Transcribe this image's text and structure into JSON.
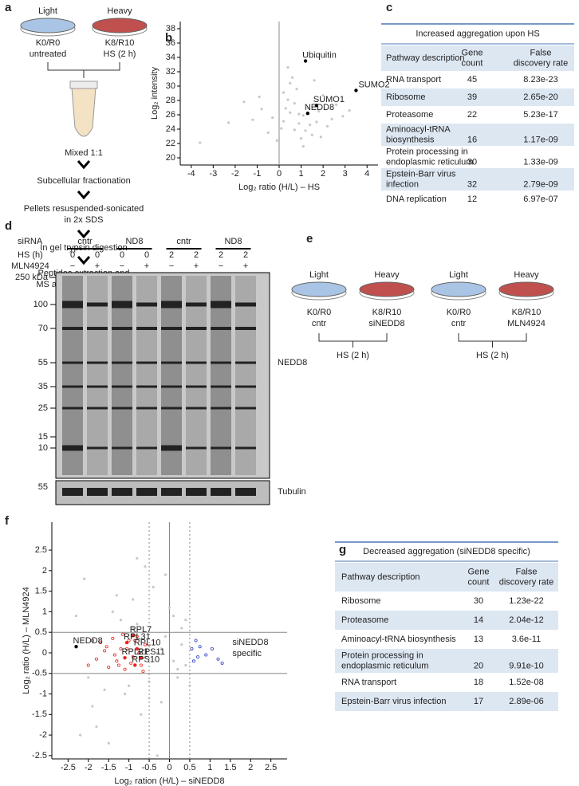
{
  "panel_labels": [
    "a",
    "b",
    "c",
    "d",
    "e",
    "f",
    "g"
  ],
  "panel_a": {
    "light": "Light",
    "heavy": "Heavy",
    "light_label": [
      "K0/R0",
      "untreated"
    ],
    "heavy_label": [
      "K8/R10",
      "HS (2 h)"
    ],
    "mix": "Mixed 1:1",
    "steps": [
      [
        "Subcellular fractionation"
      ],
      [
        "Pellets resuspended-sonicated",
        "in 2x SDS"
      ],
      [
        "In gel trypsin digestion"
      ],
      [
        "Peptides extraction and",
        "MS analysis/quantitation"
      ]
    ]
  },
  "chart_data": [
    {
      "type": "scatter",
      "xlabel": "Log₂ ratio (H/L) – HS",
      "ylabel": "Log₂ intensity",
      "xlim": [
        -4.5,
        4.5
      ],
      "ylim": [
        19,
        39
      ],
      "xticks": [
        -4,
        -3,
        -2,
        -1,
        0,
        1,
        2,
        3,
        4
      ],
      "yticks": [
        20,
        22,
        24,
        26,
        28,
        30,
        32,
        34,
        36,
        38
      ],
      "vlines": [
        0
      ],
      "series": [
        {
          "color": "#c8c8c8",
          "x": [
            0.2,
            0.5,
            0.9,
            1.3,
            -0.3,
            0.7,
            1.1,
            1.8,
            2.2,
            -0.8,
            0.4,
            1.5,
            0.1,
            -1.2,
            2.6,
            0.8,
            1.0,
            0.3,
            -0.5,
            1.7,
            2.0,
            0.6,
            -1.6,
            1.4,
            0.9,
            -0.1,
            2.9,
            0.5,
            1.2,
            -2.3,
            0.7,
            1.9,
            0.2,
            -0.9,
            3.2,
            1.1,
            -3.6,
            0.4,
            2.4,
            1.6
          ],
          "values": [
            25.1,
            26.3,
            24.8,
            27.0,
            25.6,
            23.9,
            25.9,
            26.5,
            24.4,
            26.8,
            28.1,
            23.2,
            24.1,
            25.3,
            27.4,
            29.6,
            22.7,
            26.9,
            23.5,
            25.0,
            28.7,
            31.2,
            27.8,
            24.6,
            26.1,
            22.4,
            25.8,
            30.4,
            23.8,
            24.9,
            27.6,
            22.9,
            29.1,
            28.5,
            26.6,
            21.6,
            22.1,
            32.6,
            25.4,
            30.8
          ]
        },
        {
          "color": "#000000",
          "x": [
            1.2,
            3.5,
            1.7,
            1.3
          ],
          "values": [
            33.5,
            29.4,
            27.3,
            26.2
          ],
          "labels": [
            "Ubiquitin",
            "SUMO2",
            "SUMO1",
            "NEDD8"
          ]
        }
      ]
    },
    {
      "type": "scatter",
      "xlabel": "Log₂ ration (H/L) – siNEDD8",
      "ylabel": "Log₂ ratio (H/L) – MLN4924",
      "xlim": [
        -2.9,
        2.9
      ],
      "ylim": [
        -2.58,
        3.18
      ],
      "xticks": [
        -2.5,
        -2,
        -1.5,
        -1,
        -0.5,
        0,
        0.5,
        1,
        1.5,
        2,
        2.5
      ],
      "yticks": [
        -2.5,
        -2,
        -1.5,
        -1,
        -0.5,
        0,
        0.5,
        1,
        1.5,
        2,
        2.5
      ],
      "vlines": [
        0
      ],
      "dotted_vlines": [
        -0.5,
        0.5
      ],
      "hlines": [
        -0.5,
        0.5
      ],
      "annotation": [
        "siNEDD8",
        "specific"
      ],
      "series": [
        {
          "color": "#c8c8c8",
          "x": [
            -0.2,
            0.1,
            -0.4,
            0.3,
            -0.6,
            -0.1,
            0.4,
            -0.3,
            0.2,
            -0.8,
            -1.2,
            -0.5,
            0.0,
            -1.6,
            -2.0,
            -0.9,
            0.3,
            -0.2,
            -1.4,
            -0.7,
            -2.3,
            -1.8,
            0.5,
            -0.4,
            -1.1,
            -0.6,
            0.2,
            -2.1,
            -1.5,
            -0.3,
            -0.9,
            0.1,
            -1.3,
            -0.5,
            -1.9,
            -0.8,
            0.4,
            -2.2,
            -1.0,
            -0.1
          ],
          "values": [
            0.1,
            -0.2,
            0.3,
            0.2,
            -0.1,
            0.4,
            -0.3,
            0.0,
            -0.4,
            0.7,
            0.8,
            -0.7,
            1.1,
            -0.9,
            -0.6,
            1.3,
            0.6,
            -1.2,
            1.0,
            -1.5,
            0.9,
            -1.8,
            -0.8,
            1.6,
            -1.0,
            2.1,
            -0.6,
            1.8,
            -2.2,
            -2.5,
            0.6,
            0.9,
            1.4,
            -1.1,
            -1.3,
            2.3,
            0.8,
            -2.0,
            -0.8,
            1.9
          ]
        },
        {
          "color": "#e8261f",
          "x": [
            -0.6,
            -0.7,
            -0.8,
            -0.9,
            -1.0,
            -1.1,
            -1.2,
            -1.3,
            -1.4,
            -1.5,
            -1.6,
            -1.7,
            -1.8,
            -0.75,
            -0.95,
            -1.15,
            -1.35,
            -1.55,
            -1.9,
            -2.0,
            -0.65,
            -1.05,
            -1.25,
            -0.85
          ],
          "values": [
            0.2,
            -0.3,
            0.4,
            -0.1,
            0.3,
            -0.4,
            0.1,
            -0.2,
            0.35,
            -0.35,
            0.05,
            0.25,
            -0.15,
            0.0,
            -0.25,
            0.45,
            -0.05,
            0.15,
            0.3,
            -0.3,
            -0.45,
            0.1,
            -0.3,
            0.3
          ]
        },
        {
          "color": "#2b3fc4",
          "x": [
            0.55,
            0.6,
            0.65,
            0.7,
            0.75,
            0.9,
            1.05,
            1.2,
            1.3
          ],
          "values": [
            0.1,
            -0.2,
            0.3,
            -0.1,
            0.15,
            -0.05,
            0.1,
            -0.15,
            -0.25
          ]
        },
        {
          "color": "#e8261f",
          "x": [
            -0.9,
            -1.05,
            -0.8,
            -1.1,
            -0.7,
            -0.85
          ],
          "values": [
            0.42,
            0.25,
            0.1,
            -0.12,
            -0.12,
            -0.3
          ],
          "labels": [
            "RPL7",
            "RPL31",
            "RPL10",
            "RPL21",
            "RPS11",
            "RPS10"
          ]
        },
        {
          "color": "#000000",
          "x": [
            -2.3
          ],
          "values": [
            0.15
          ],
          "labels": [
            "NEDD8"
          ]
        }
      ]
    }
  ],
  "table_c": {
    "title": "Increased aggregation upon HS",
    "header": [
      [
        "Pathway description"
      ],
      [
        "Gene",
        "count"
      ],
      [
        "False",
        "discovery rate"
      ]
    ],
    "rows": [
      [
        [
          "RNA transport"
        ],
        "45",
        "8.23e-23"
      ],
      [
        [
          "Ribosome"
        ],
        "39",
        "2.65e-20"
      ],
      [
        [
          "Proteasome"
        ],
        "22",
        "5.23e-17"
      ],
      [
        [
          "Aminoacyl-tRNA",
          "biosynthesis"
        ],
        "16",
        "1.17e-09"
      ],
      [
        [
          "Protein processing in",
          "endoplasmic reticulum"
        ],
        "30",
        "1.33e-09"
      ],
      [
        [
          "Epstein-Barr virus",
          "infection"
        ],
        "32",
        "2.79e-09"
      ],
      [
        [
          "DNA replication"
        ],
        "12",
        "6.97e-07"
      ]
    ]
  },
  "blot_d": {
    "sirna_label": "siRNA",
    "sirna": [
      "cntr",
      "ND8",
      "cntr",
      "ND8"
    ],
    "hs_label": "HS (h)",
    "hs": [
      "0",
      "0",
      "0",
      "0",
      "2",
      "2",
      "2",
      "2"
    ],
    "mln_label": "MLN4924",
    "mln": [
      "−",
      "+",
      "−",
      "+",
      "−",
      "+",
      "−",
      "+"
    ],
    "markers": [
      "250 kDa",
      "100",
      "70",
      "55",
      "35",
      "25",
      "15",
      "10"
    ],
    "tubulin_marker": "55",
    "antibody": "NEDD8",
    "loading": "Tubulin"
  },
  "diagram_e": {
    "groups": [
      {
        "light": "Light",
        "heavy": "Heavy",
        "light_label": [
          "K0/R0",
          "cntr"
        ],
        "heavy_label": [
          "K8/R10",
          "siNEDD8"
        ],
        "condition": "HS (2 h)"
      },
      {
        "light": "Light",
        "heavy": "Heavy",
        "light_label": [
          "K0/R0",
          "cntr"
        ],
        "heavy_label": [
          "K8/R10",
          "MLN4924"
        ],
        "condition": "HS (2 h)"
      }
    ]
  },
  "table_g": {
    "title": "Decreased aggregation (siNEDD8 specific)",
    "header": [
      [
        "Pathway description"
      ],
      [
        "Gene",
        "count"
      ],
      [
        "False",
        "discovery rate"
      ]
    ],
    "rows": [
      [
        [
          "Ribosome"
        ],
        "30",
        "1.23e-22"
      ],
      [
        [
          "Proteasome"
        ],
        "14",
        "2.04e-12"
      ],
      [
        [
          "Aminoacyl-tRNA biosynthesis"
        ],
        "13",
        "3.6e-11"
      ],
      [
        [
          "Protein processing in",
          "endoplasmic reticulum"
        ],
        "20",
        "9.91e-10"
      ],
      [
        [
          "RNA transport"
        ],
        "18",
        "1.52e-08"
      ],
      [
        [
          "Epstein-Barr virus infection"
        ],
        "17",
        "2.89e-06"
      ]
    ]
  }
}
